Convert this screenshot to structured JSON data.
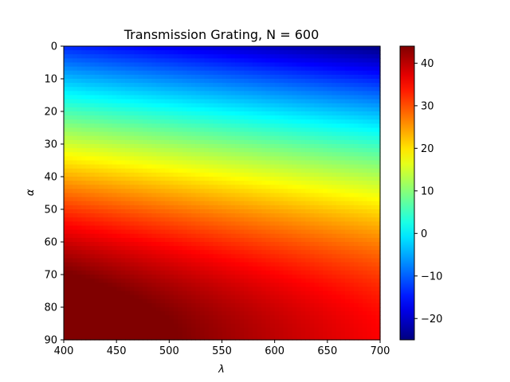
{
  "chart_data": {
    "type": "heatmap",
    "title": "Transmission Grating, N = 600",
    "xlabel": "λ",
    "ylabel": "α",
    "xlim": [
      400,
      700
    ],
    "ylim": [
      0,
      90
    ],
    "y_inverted": true,
    "x_ticks": [
      400,
      450,
      500,
      550,
      600,
      650,
      700
    ],
    "y_ticks": [
      0,
      10,
      20,
      30,
      40,
      50,
      60,
      70,
      80,
      90
    ],
    "colormap": "jet",
    "colorbar": {
      "vmin": -25,
      "vmax": 44,
      "ticks": [
        -20,
        -10,
        0,
        10,
        20,
        30,
        40
      ]
    },
    "lines_per_mm": 600,
    "grid": false
  }
}
